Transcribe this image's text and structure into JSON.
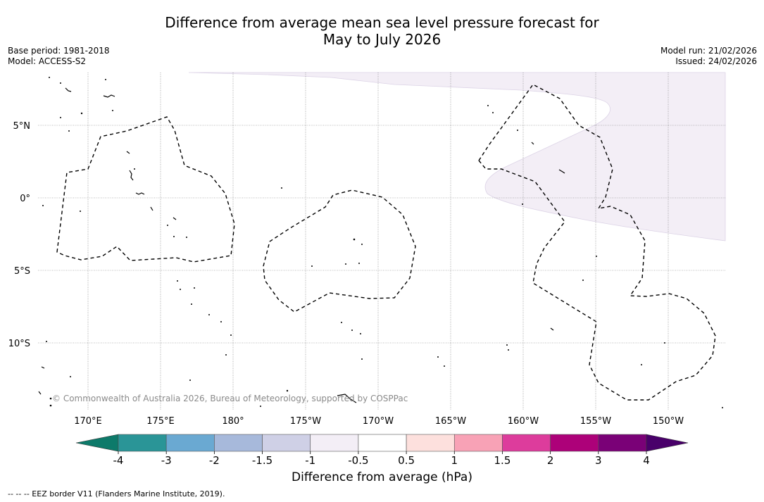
{
  "header": {
    "title_line1": "Difference from average mean sea level pressure forecast for",
    "title_line2": "May to July 2026",
    "base_period": "Base period: 1981-2018",
    "model": "Model: ACCESS-S2",
    "model_run": "Model run: 21/02/2026",
    "issued": "Issued: 24/02/2026"
  },
  "map": {
    "lat_labels": [
      "5°N",
      "0°",
      "5°S",
      "10°S"
    ],
    "lon_labels": [
      "170°E",
      "175°E",
      "180°",
      "175°W",
      "170°W",
      "165°W",
      "160°W",
      "155°W",
      "150°W"
    ],
    "copyright": "© Commonwealth of Australia 2026, Bureau of Meteorology, supported by COSPPac"
  },
  "colorbar": {
    "title": "Difference from average (hPa)",
    "ticks": [
      "-4",
      "-3",
      "-2",
      "-1.5",
      "-1",
      "-0.5",
      "0.5",
      "1",
      "1.5",
      "2",
      "3",
      "4"
    ],
    "colors": [
      "#0d7a6a",
      "#2a9597",
      "#6aa9d2",
      "#a7b9db",
      "#cfd0e6",
      "#f3eef6",
      "#ffffff",
      "#fde0dd",
      "#f8a2b6",
      "#dd3c9c",
      "#ad0179",
      "#7a0177",
      "#49006a"
    ]
  },
  "footer": {
    "legend": "--  --  -- EEZ border V11 (Flanders Marine Institute, 2019)."
  }
}
